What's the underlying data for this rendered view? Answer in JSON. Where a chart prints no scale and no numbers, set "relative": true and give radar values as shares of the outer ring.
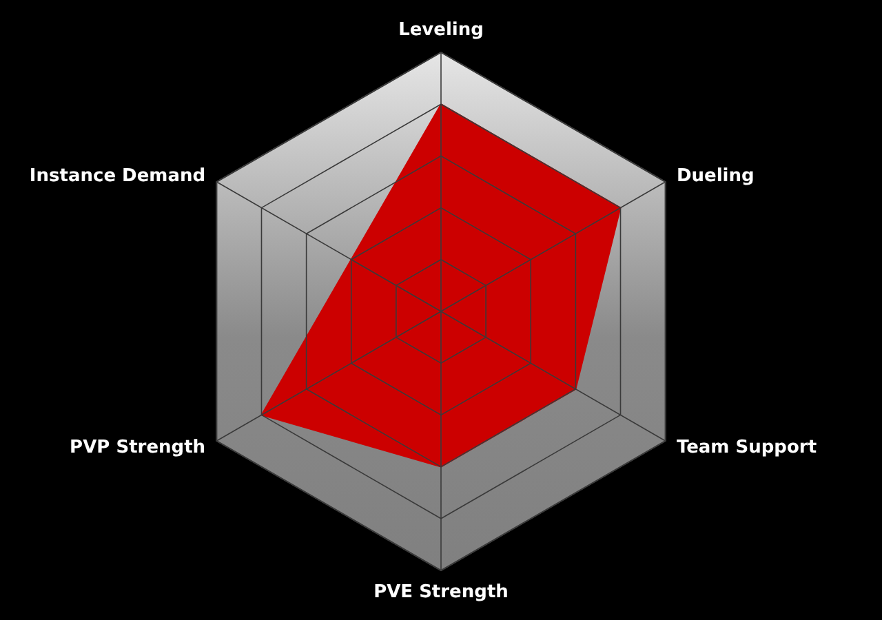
{
  "chart_data": {
    "type": "radar",
    "relative": true,
    "categories": [
      "Leveling",
      "Dueling",
      "Team Support",
      "PVE Strength",
      "PVP Strength",
      "Instance Demand"
    ],
    "series": [
      {
        "color": "#cc0000",
        "values": [
          0.8,
          0.8,
          0.6,
          0.6,
          0.8,
          0.4
        ]
      }
    ]
  }
}
